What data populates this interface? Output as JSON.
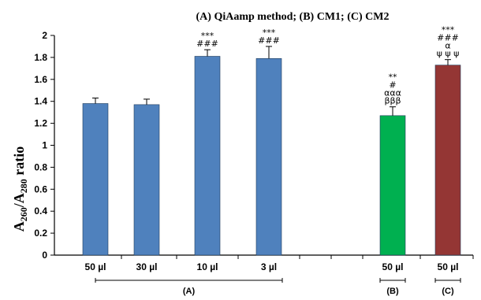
{
  "chart_data": {
    "type": "bar",
    "title": "(A) QiAamp method; (B) CM1; (C) CM2",
    "ylabel": {
      "base": "A",
      "sub1": "260",
      "mid": "/A",
      "sub2": "280",
      "tail": " ratio"
    },
    "ylim": [
      0,
      2
    ],
    "yticks": [
      "0",
      "0.2",
      "0.4",
      "0.6",
      "0.8",
      "1",
      "1.2",
      "1.4",
      "1.6",
      "1.8",
      "2"
    ],
    "grid": false,
    "legend": "none",
    "bars": [
      {
        "label": "50 µl",
        "value": 1.38,
        "error": 0.05,
        "color": "#4f81bd",
        "group": "A",
        "annotations": []
      },
      {
        "label": "30 µl",
        "value": 1.37,
        "error": 0.05,
        "color": "#4f81bd",
        "group": "A",
        "annotations": []
      },
      {
        "label": "10 µl",
        "value": 1.81,
        "error": 0.06,
        "color": "#4f81bd",
        "group": "A",
        "annotations": [
          "***",
          "###"
        ]
      },
      {
        "label": "3 µl",
        "value": 1.79,
        "error": 0.11,
        "color": "#4f81bd",
        "group": "A",
        "annotations": [
          "***",
          "###"
        ]
      },
      {
        "label": "50 µl",
        "value": 1.27,
        "error": 0.08,
        "color": "#00b050",
        "group": "B",
        "annotations": [
          "**",
          "#",
          "ααα",
          "βββ"
        ]
      },
      {
        "label": "50 µl",
        "value": 1.73,
        "error": 0.05,
        "color": "#943634",
        "group": "C",
        "annotations": [
          "***",
          "###",
          "α",
          "ψ ψ ψ"
        ]
      }
    ],
    "groups": [
      {
        "id": "A",
        "label": "(A)"
      },
      {
        "id": "B",
        "label": "(B)"
      },
      {
        "id": "C",
        "label": "(C)"
      }
    ]
  }
}
